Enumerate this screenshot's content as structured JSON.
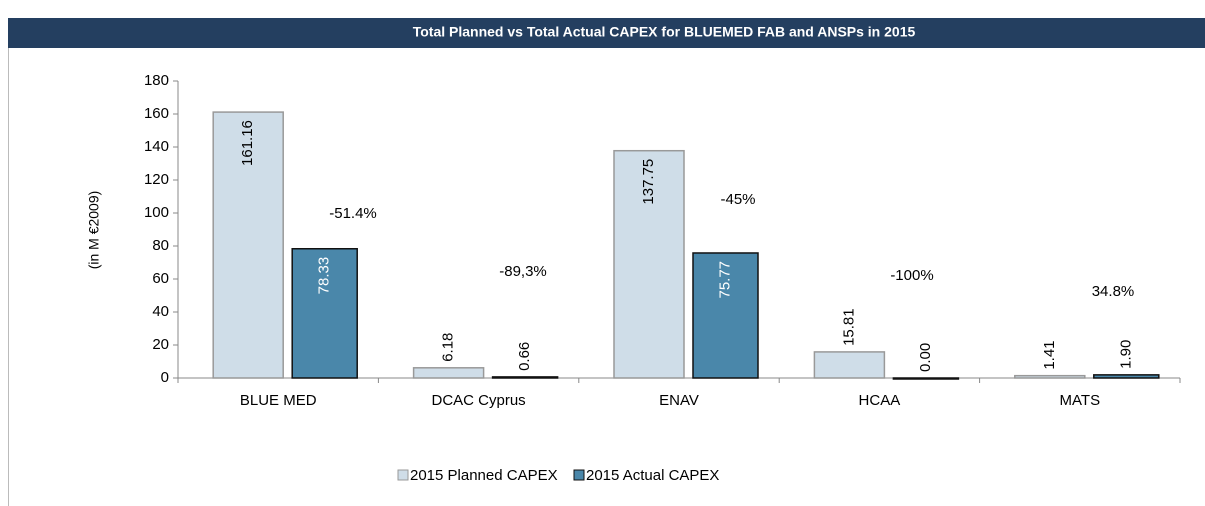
{
  "chart_data": {
    "type": "bar",
    "title": "Total Planned vs Total Actual CAPEX for BLUEMED FAB and ANSPs in 2015",
    "y_label": "(in M €2009)",
    "categories": [
      "BLUE MED",
      "DCAC Cyprus",
      "ENAV",
      "HCAA",
      "MATS"
    ],
    "series": [
      {
        "name": "2015 Planned CAPEX",
        "color": "#cfdde8",
        "values": [
          161.16,
          6.18,
          137.75,
          15.81,
          1.41
        ],
        "value_labels": [
          "161.16",
          "6.18",
          "137.75",
          "15.81",
          "1.41"
        ]
      },
      {
        "name": "2015 Actual CAPEX",
        "color": "#4a87aa",
        "values": [
          78.33,
          0.66,
          75.77,
          0.0,
          1.9
        ],
        "value_labels": [
          "78.33",
          "0.66",
          "75.77",
          "0.00",
          "1.90"
        ]
      }
    ],
    "annotations": [
      "-51.4%",
      "-89,3%",
      "-45%",
      "-100%",
      "34.8%"
    ],
    "ylim": [
      0,
      180
    ],
    "yticks": [
      0,
      20,
      40,
      60,
      80,
      100,
      120,
      140,
      160,
      180
    ],
    "grid": false,
    "legend": "bottom"
  }
}
